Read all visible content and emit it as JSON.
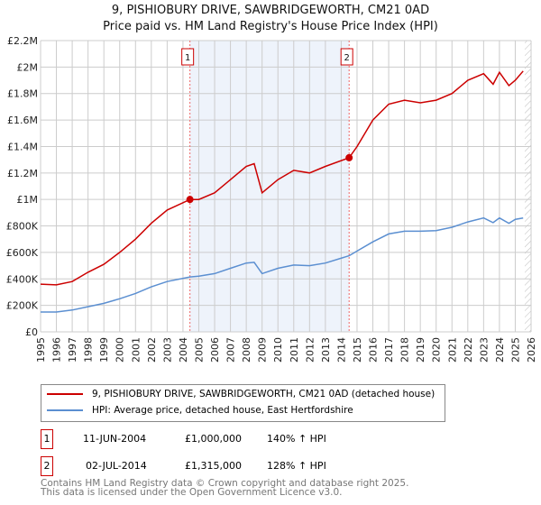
{
  "chart_data": {
    "type": "line",
    "title": "9, PISHIOBURY DRIVE, SAWBRIDGEWORTH, CM21 0AD",
    "subtitle": "Price paid vs. HM Land Registry's House Price Index (HPI)",
    "xlim": [
      1995,
      2026
    ],
    "ylim": [
      0,
      2200000
    ],
    "x_ticks": [
      "1995",
      "1996",
      "1997",
      "1998",
      "1999",
      "2000",
      "2001",
      "2002",
      "2003",
      "2004",
      "2005",
      "2006",
      "2007",
      "2008",
      "2009",
      "2010",
      "2011",
      "2012",
      "2013",
      "2014",
      "2015",
      "2016",
      "2017",
      "2018",
      "2019",
      "2020",
      "2021",
      "2022",
      "2023",
      "2024",
      "2025",
      "2026"
    ],
    "y_ticks": [
      {
        "v": 0,
        "label": "£0"
      },
      {
        "v": 200000,
        "label": "£200K"
      },
      {
        "v": 400000,
        "label": "£400K"
      },
      {
        "v": 600000,
        "label": "£600K"
      },
      {
        "v": 800000,
        "label": "£800K"
      },
      {
        "v": 1000000,
        "label": "£1M"
      },
      {
        "v": 1200000,
        "label": "£1.2M"
      },
      {
        "v": 1400000,
        "label": "£1.4M"
      },
      {
        "v": 1600000,
        "label": "£1.6M"
      },
      {
        "v": 1800000,
        "label": "£1.8M"
      },
      {
        "v": 2000000,
        "label": "£2M"
      },
      {
        "v": 2200000,
        "label": "£2.2M"
      }
    ],
    "grid": true,
    "series": [
      {
        "name": "9, PISHIOBURY DRIVE, SAWBRIDGEWORTH, CM21 0AD (detached house)",
        "color": "#cc0000",
        "x": [
          1995,
          1996,
          1997,
          1998,
          1999,
          2000,
          2001,
          2002,
          2003,
          2004.44,
          2005,
          2006,
          2007,
          2008,
          2008.5,
          2009,
          2010,
          2011,
          2012,
          2013,
          2014.5,
          2015,
          2016,
          2017,
          2018,
          2019,
          2020,
          2021,
          2022,
          2023,
          2023.6,
          2024,
          2024.6,
          2025,
          2025.5
        ],
        "y": [
          360000,
          355000,
          380000,
          450000,
          510000,
          600000,
          700000,
          820000,
          920000,
          1000000,
          1000000,
          1050000,
          1150000,
          1250000,
          1270000,
          1050000,
          1150000,
          1220000,
          1200000,
          1250000,
          1315000,
          1400000,
          1600000,
          1720000,
          1750000,
          1730000,
          1750000,
          1800000,
          1900000,
          1950000,
          1870000,
          1960000,
          1860000,
          1900000,
          1970000
        ]
      },
      {
        "name": "HPI: Average price, detached house, East Hertfordshire",
        "color": "#5b8fd1",
        "x": [
          1995,
          1996,
          1997,
          1998,
          1999,
          2000,
          2001,
          2002,
          2003,
          2004.44,
          2005,
          2006,
          2007,
          2008,
          2008.5,
          2009,
          2010,
          2011,
          2012,
          2013,
          2014.5,
          2015,
          2016,
          2017,
          2018,
          2019,
          2020,
          2021,
          2022,
          2023,
          2023.6,
          2024,
          2024.6,
          2025,
          2025.5
        ],
        "y": [
          150000,
          150000,
          165000,
          190000,
          215000,
          250000,
          290000,
          340000,
          380000,
          415000,
          420000,
          440000,
          480000,
          520000,
          525000,
          440000,
          480000,
          505000,
          500000,
          520000,
          575000,
          610000,
          680000,
          740000,
          760000,
          760000,
          765000,
          790000,
          830000,
          860000,
          825000,
          860000,
          820000,
          850000,
          860000
        ]
      }
    ],
    "sales": [
      {
        "marker": "1",
        "x": 2004.44,
        "date": "11-JUN-2004",
        "price": "£1,000,000",
        "value": 1000000,
        "hpi": "140% ↑ HPI"
      },
      {
        "marker": "2",
        "x": 2014.5,
        "date": "02-JUL-2014",
        "price": "£1,315,000",
        "value": 1315000,
        "hpi": "128% ↑ HPI"
      }
    ],
    "hatch_from": 2025.6,
    "legend": "bottom"
  },
  "footer": {
    "line1": "Contains HM Land Registry data © Crown copyright and database right 2025.",
    "line2": "This data is licensed under the Open Government Licence v3.0."
  }
}
